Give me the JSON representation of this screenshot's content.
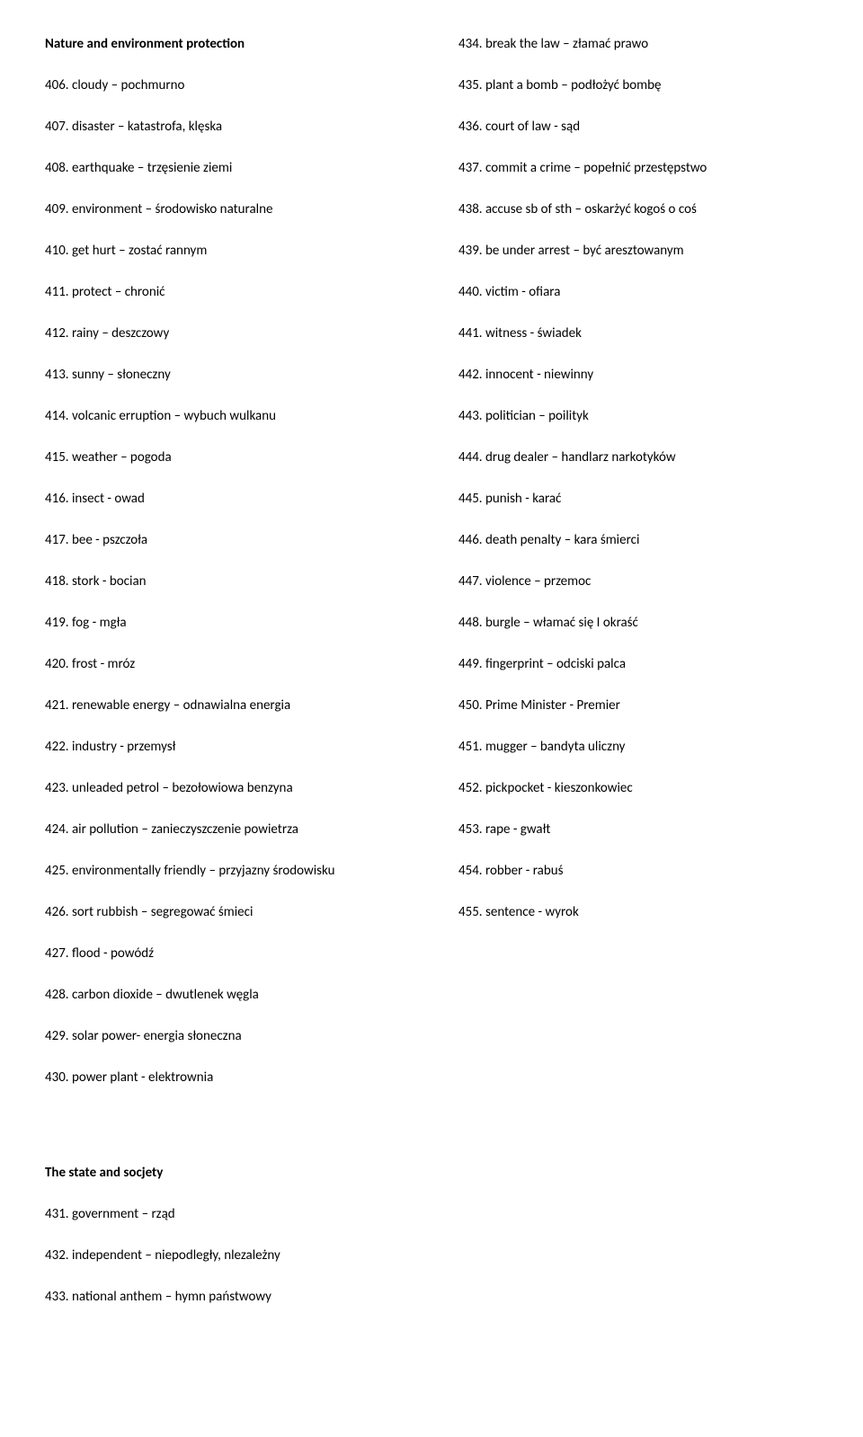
{
  "left": {
    "heading1": "Nature and environment protection",
    "items1": [
      "406. cloudy – pochmurno",
      "407. disaster – katastrofa, klęska",
      "408. earthquake – trzęsienie ziemi",
      "409. environment – środowisko naturalne",
      "410. get hurt – zostać rannym",
      "411. protect – chronić",
      "412. rainy – deszczowy",
      "413. sunny – słoneczny",
      "414. volcanic erruption – wybuch wulkanu",
      "415. weather – pogoda",
      "416. insect - owad",
      "417. bee - pszczoła",
      "418. stork - bocian",
      "419. fog - mgła",
      "420. frost - mróz",
      "421. renewable energy – odnawialna energia",
      "422. industry - przemysł",
      "423. unleaded petrol – bezołowiowa benzyna",
      "424. air pollution – zanieczyszczenie powietrza",
      "425. environmentally friendly – przyjazny środowisku",
      "426. sort rubbish – segregować śmieci",
      "427. flood - powódź",
      "428. carbon dioxide – dwutlenek węgla",
      "429. solar power- energia słoneczna",
      "430. power plant - elektrownia"
    ],
    "heading2": "The state and socjety",
    "items2": [
      "431. government – rząd",
      "432. independent – niepodległy, nlezależny",
      "433. national anthem – hymn państwowy"
    ]
  },
  "right": {
    "items": [
      "434. break the law – złamać prawo",
      "435. plant a bomb – podłożyć bombę",
      "436. court of law - sąd",
      "437. commit a crime – popełnić przestępstwo",
      "438. accuse sb of sth – oskarżyć kogoś o coś",
      "439. be under arrest – być aresztowanym",
      "440. victim - ofiara",
      "441. witness - świadek",
      "442. innocent - niewinny",
      "443. politician – poilityk",
      "444. drug dealer – handlarz narkotyków",
      "445. punish - karać",
      "446. death penalty – kara śmierci",
      "447. violence – przemoc",
      "448. burgle – włamać się I okraść",
      "449. fingerprint – odciski palca",
      "450. Prime Minister - Premier",
      "451. mugger – bandyta uliczny",
      "452. pickpocket - kieszonkowiec",
      "453. rape - gwałt",
      "454. robber - rabuś",
      "455. sentence - wyrok"
    ]
  }
}
